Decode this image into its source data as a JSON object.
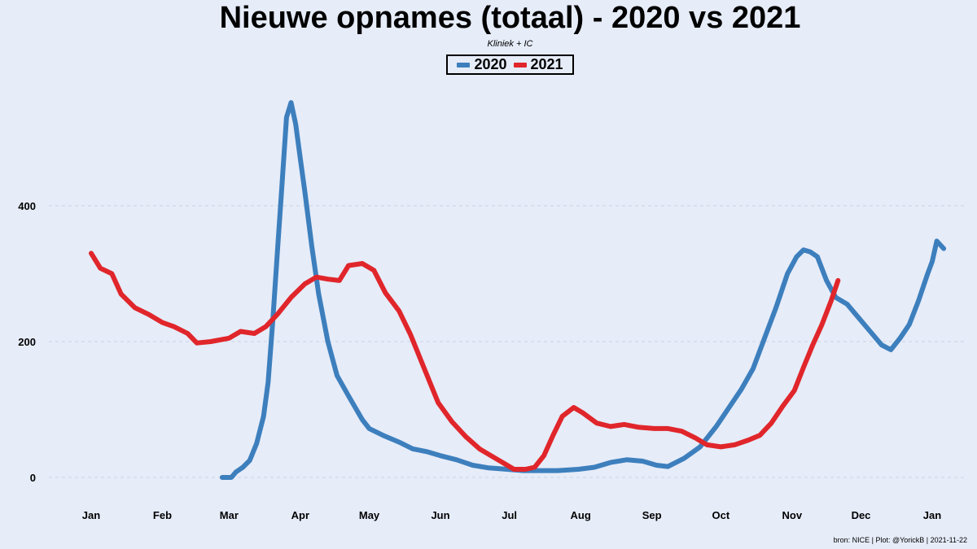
{
  "chart_data": {
    "type": "line",
    "title": "Nieuwe opnames (totaal) - 2020 vs 2021",
    "subtitle": "Kliniek + IC",
    "caption": "bron: NICE  | Plot: @YorickB |  2021-11-22",
    "x_ticks": [
      "Jan",
      "Feb",
      "Mar",
      "Apr",
      "May",
      "Jun",
      "Jul",
      "Aug",
      "Sep",
      "Oct",
      "Nov",
      "Dec",
      "Jan"
    ],
    "y_ticks": [
      0,
      200,
      400
    ],
    "ylim": [
      -20,
      580
    ],
    "grid": "horizontal dashed",
    "legend": "top-center",
    "series": [
      {
        "name": "2020",
        "color": "#3d7fbd",
        "points": [
          [
            "2020-02-27",
            0
          ],
          [
            "2020-03-02",
            0
          ],
          [
            "2020-03-04",
            8
          ],
          [
            "2020-03-07",
            15
          ],
          [
            "2020-03-10",
            25
          ],
          [
            "2020-03-13",
            50
          ],
          [
            "2020-03-16",
            90
          ],
          [
            "2020-03-18",
            140
          ],
          [
            "2020-03-20",
            230
          ],
          [
            "2020-03-22",
            330
          ],
          [
            "2020-03-24",
            430
          ],
          [
            "2020-03-26",
            530
          ],
          [
            "2020-03-28",
            552
          ],
          [
            "2020-03-30",
            520
          ],
          [
            "2020-04-01",
            470
          ],
          [
            "2020-04-03",
            420
          ],
          [
            "2020-04-06",
            340
          ],
          [
            "2020-04-09",
            270
          ],
          [
            "2020-04-13",
            200
          ],
          [
            "2020-04-17",
            150
          ],
          [
            "2020-04-22",
            120
          ],
          [
            "2020-04-28",
            85
          ],
          [
            "2020-05-01",
            72
          ],
          [
            "2020-05-07",
            62
          ],
          [
            "2020-05-14",
            52
          ],
          [
            "2020-05-20",
            42
          ],
          [
            "2020-05-26",
            38
          ],
          [
            "2020-06-01",
            32
          ],
          [
            "2020-06-08",
            26
          ],
          [
            "2020-06-15",
            18
          ],
          [
            "2020-06-22",
            14
          ],
          [
            "2020-06-30",
            12
          ],
          [
            "2020-07-07",
            10
          ],
          [
            "2020-07-15",
            10
          ],
          [
            "2020-07-22",
            10
          ],
          [
            "2020-07-31",
            12
          ],
          [
            "2020-08-07",
            15
          ],
          [
            "2020-08-14",
            22
          ],
          [
            "2020-08-21",
            26
          ],
          [
            "2020-08-28",
            24
          ],
          [
            "2020-09-03",
            18
          ],
          [
            "2020-09-08",
            16
          ],
          [
            "2020-09-15",
            28
          ],
          [
            "2020-09-22",
            45
          ],
          [
            "2020-09-29",
            75
          ],
          [
            "2020-10-04",
            100
          ],
          [
            "2020-10-10",
            130
          ],
          [
            "2020-10-15",
            160
          ],
          [
            "2020-10-20",
            205
          ],
          [
            "2020-10-25",
            250
          ],
          [
            "2020-10-30",
            300
          ],
          [
            "2020-11-03",
            325
          ],
          [
            "2020-11-06",
            335
          ],
          [
            "2020-11-09",
            332
          ],
          [
            "2020-11-12",
            325
          ],
          [
            "2020-11-16",
            290
          ],
          [
            "2020-11-20",
            265
          ],
          [
            "2020-11-25",
            255
          ],
          [
            "2020-11-30",
            235
          ],
          [
            "2020-12-05",
            215
          ],
          [
            "2020-12-10",
            195
          ],
          [
            "2020-12-14",
            188
          ],
          [
            "2020-12-18",
            205
          ],
          [
            "2020-12-22",
            225
          ],
          [
            "2020-12-26",
            260
          ],
          [
            "2020-12-30",
            300
          ],
          [
            "2021-01-01",
            318
          ],
          [
            "2021-01-03",
            348
          ],
          [
            "2021-01-06",
            337
          ]
        ]
      },
      {
        "name": "2021",
        "color": "#e0262b",
        "points": [
          [
            "2020-01-01",
            330
          ],
          [
            "2020-01-05",
            308
          ],
          [
            "2020-01-10",
            300
          ],
          [
            "2020-01-14",
            270
          ],
          [
            "2020-01-20",
            250
          ],
          [
            "2020-01-26",
            240
          ],
          [
            "2020-02-01",
            228
          ],
          [
            "2020-02-06",
            222
          ],
          [
            "2020-02-12",
            212
          ],
          [
            "2020-02-16",
            198
          ],
          [
            "2020-02-22",
            200
          ],
          [
            "2020-03-01",
            205
          ],
          [
            "2020-03-06",
            215
          ],
          [
            "2020-03-12",
            212
          ],
          [
            "2020-03-17",
            222
          ],
          [
            "2020-03-22",
            240
          ],
          [
            "2020-03-28",
            265
          ],
          [
            "2020-04-03",
            285
          ],
          [
            "2020-04-08",
            295
          ],
          [
            "2020-04-13",
            292
          ],
          [
            "2020-04-18",
            290
          ],
          [
            "2020-04-22",
            312
          ],
          [
            "2020-04-28",
            315
          ],
          [
            "2020-05-03",
            305
          ],
          [
            "2020-05-08",
            272
          ],
          [
            "2020-05-14",
            245
          ],
          [
            "2020-05-19",
            210
          ],
          [
            "2020-05-25",
            160
          ],
          [
            "2020-05-31",
            110
          ],
          [
            "2020-06-06",
            82
          ],
          [
            "2020-06-12",
            60
          ],
          [
            "2020-06-18",
            42
          ],
          [
            "2020-06-23",
            32
          ],
          [
            "2020-06-28",
            22
          ],
          [
            "2020-07-03",
            12
          ],
          [
            "2020-07-08",
            12
          ],
          [
            "2020-07-12",
            15
          ],
          [
            "2020-07-16",
            32
          ],
          [
            "2020-07-20",
            62
          ],
          [
            "2020-07-24",
            90
          ],
          [
            "2020-07-29",
            103
          ],
          [
            "2020-08-02",
            95
          ],
          [
            "2020-08-08",
            80
          ],
          [
            "2020-08-14",
            75
          ],
          [
            "2020-08-20",
            78
          ],
          [
            "2020-08-26",
            74
          ],
          [
            "2020-09-02",
            72
          ],
          [
            "2020-09-08",
            72
          ],
          [
            "2020-09-14",
            68
          ],
          [
            "2020-09-20",
            58
          ],
          [
            "2020-09-25",
            48
          ],
          [
            "2020-10-01",
            45
          ],
          [
            "2020-10-07",
            48
          ],
          [
            "2020-10-13",
            55
          ],
          [
            "2020-10-18",
            62
          ],
          [
            "2020-10-23",
            80
          ],
          [
            "2020-10-28",
            105
          ],
          [
            "2020-11-02",
            128
          ],
          [
            "2020-11-06",
            162
          ],
          [
            "2020-11-10",
            195
          ],
          [
            "2020-11-14",
            225
          ],
          [
            "2020-11-18",
            260
          ],
          [
            "2020-11-21",
            290
          ]
        ]
      }
    ]
  }
}
